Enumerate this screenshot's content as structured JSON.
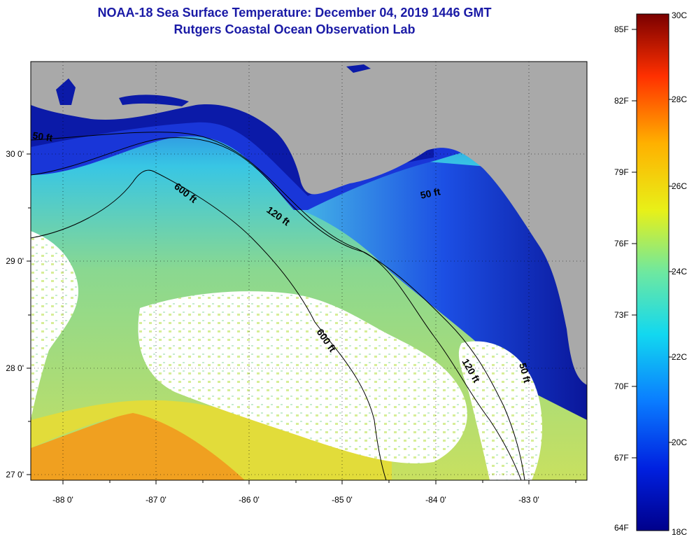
{
  "title": "NOAA-18 Sea Surface Temperature:  December 04, 2019 1446 GMT",
  "subtitle": "Rutgers Coastal Ocean Observation Lab",
  "map": {
    "lon_labels": [
      "-88 0'",
      "-87 0'",
      "-86 0'",
      "-85 0'",
      "-84 0'",
      "-83 0'"
    ],
    "lat_labels": [
      "30 0'",
      "29 0'",
      "28 0'",
      "27 0'"
    ],
    "contour_labels": [
      {
        "id": "c50w",
        "text": "50 ft"
      },
      {
        "id": "c600a",
        "text": "600 ft"
      },
      {
        "id": "c120a",
        "text": "120 ft"
      },
      {
        "id": "c50e",
        "text": "50 ft"
      },
      {
        "id": "c600b",
        "text": "600 ft"
      },
      {
        "id": "c120b",
        "text": "120 ft"
      },
      {
        "id": "c50s",
        "text": "50 ft"
      }
    ],
    "colors": {
      "land": "#a9a9a9",
      "cloud": "#ffffff",
      "deep_blue": "#0a1a9c",
      "mid_blue": "#1e6ae0",
      "cyan": "#22c7e8",
      "green": "#7ed8a0",
      "yellow": "#f2e020",
      "orange": "#f5a21f"
    }
  },
  "colorbar": {
    "fahrenheit": [
      "85F",
      "82F",
      "79F",
      "76F",
      "73F",
      "70F",
      "67F",
      "64F"
    ],
    "celsius": [
      "30C",
      "28C",
      "26C",
      "24C",
      "22C",
      "20C",
      "18C"
    ]
  }
}
